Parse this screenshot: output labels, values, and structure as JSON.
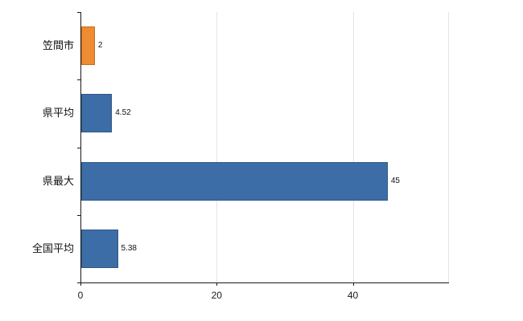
{
  "chart_data": {
    "type": "bar",
    "orientation": "horizontal",
    "title": "",
    "xlabel": "",
    "ylabel": "",
    "categories": [
      "笠間市",
      "県平均",
      "県最大",
      "全国平均"
    ],
    "values": [
      2,
      4.52,
      45,
      5.38
    ],
    "value_labels": [
      "2",
      "4.52",
      "45",
      "5.38"
    ],
    "xlim": [
      0,
      54
    ],
    "xticks": [
      0,
      20,
      40
    ],
    "xtick_labels": [
      "0",
      "20",
      "40"
    ],
    "bar_colors": [
      "#ef8b33",
      "#3c6da6",
      "#3c6da6",
      "#3c6da6"
    ],
    "bar_border_colors": [
      "#c96c14",
      "#2f5784",
      "#2f5784",
      "#2f5784"
    ],
    "grid": "vertical",
    "legend": "none",
    "background": "#ffffff"
  },
  "colors": {
    "axis": "#1a1a1a",
    "gridline": "#e4e4e4",
    "text": "#111111"
  }
}
